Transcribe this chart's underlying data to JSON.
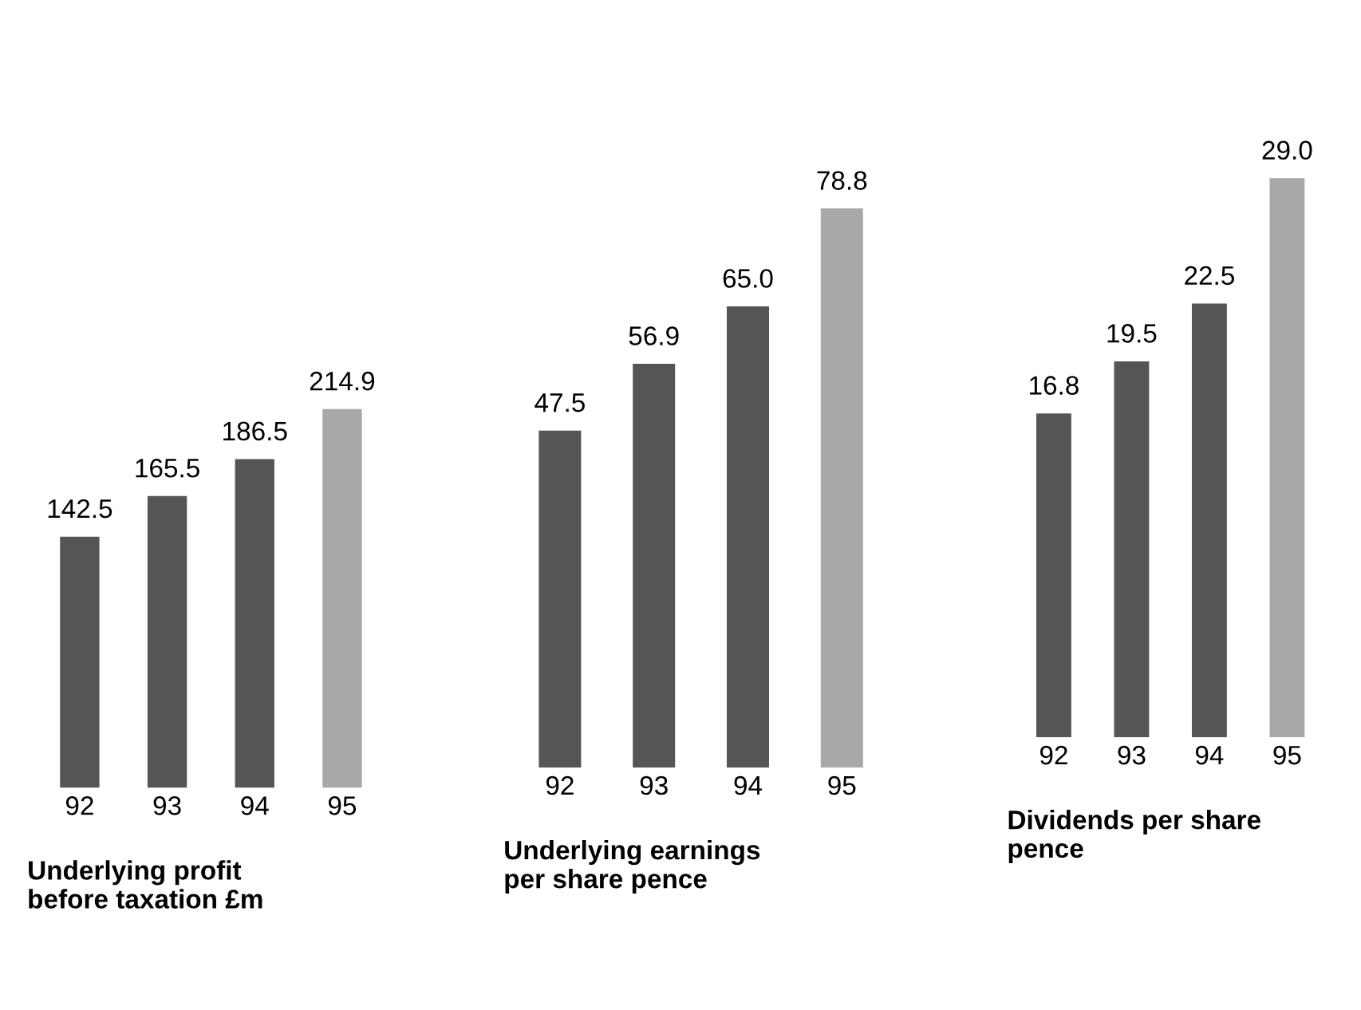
{
  "chart_data": [
    {
      "type": "bar",
      "xlabel": "Underlying profit\nbefore taxation £m",
      "categories": [
        "92",
        "93",
        "94",
        "95"
      ],
      "values": [
        142.5,
        165.5,
        186.5,
        214.9
      ],
      "colors": [
        "#555555",
        "#555555",
        "#555555",
        "#a8a8a8"
      ],
      "value_labels": [
        "142.5",
        "165.5",
        "186.5",
        "214.9"
      ]
    },
    {
      "type": "bar",
      "xlabel": "Underlying earnings\nper share pence",
      "categories": [
        "92",
        "93",
        "94",
        "95"
      ],
      "values": [
        47.5,
        56.9,
        65.0,
        78.8
      ],
      "colors": [
        "#555555",
        "#555555",
        "#555555",
        "#a8a8a8"
      ],
      "value_labels": [
        "47.5",
        "56.9",
        "65.0",
        "78.8"
      ]
    },
    {
      "type": "bar",
      "xlabel": "Dividends per share\npence",
      "categories": [
        "92",
        "93",
        "94",
        "95"
      ],
      "values": [
        16.8,
        19.5,
        22.5,
        29.0
      ],
      "colors": [
        "#555555",
        "#555555",
        "#555555",
        "#a8a8a8"
      ],
      "value_labels": [
        "16.8",
        "19.5",
        "22.5",
        "29.0"
      ]
    }
  ]
}
